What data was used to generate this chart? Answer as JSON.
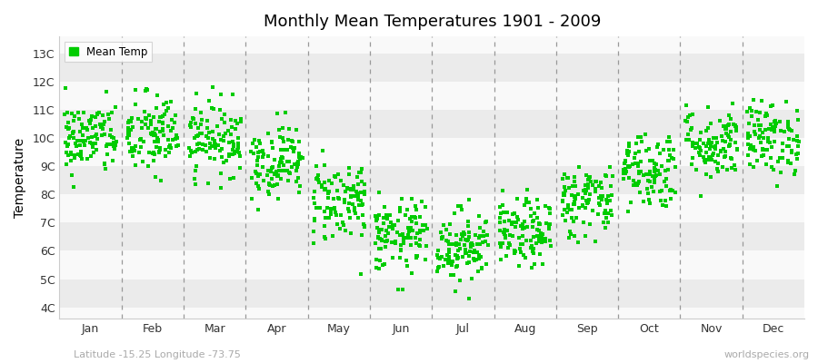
{
  "title": "Monthly Mean Temperatures 1901 - 2009",
  "ylabel": "Temperature",
  "subtitle_left": "Latitude -15.25 Longitude -73.75",
  "subtitle_right": "worldspecies.org",
  "dot_color": "#00cc00",
  "background_color": "#f5f5f5",
  "band_light": "#f9f9f9",
  "band_dark": "#ebebeb",
  "y_ticks": [
    4,
    5,
    6,
    7,
    8,
    9,
    10,
    11,
    12,
    13
  ],
  "y_labels": [
    "4C",
    "5C",
    "6C",
    "7C",
    "8C",
    "9C",
    "10C",
    "11C",
    "12C",
    "13C"
  ],
  "ylim": [
    3.6,
    13.6
  ],
  "months": [
    "Jan",
    "Feb",
    "Mar",
    "Apr",
    "May",
    "Jun",
    "Jul",
    "Aug",
    "Sep",
    "Oct",
    "Nov",
    "Dec"
  ],
  "month_means": [
    10.0,
    10.1,
    10.0,
    9.2,
    7.8,
    6.5,
    6.2,
    6.6,
    7.8,
    8.9,
    9.8,
    10.0
  ],
  "month_stds": [
    0.65,
    0.75,
    0.65,
    0.65,
    0.75,
    0.65,
    0.65,
    0.6,
    0.65,
    0.7,
    0.65,
    0.65
  ],
  "n_years": 109,
  "seed": 42,
  "marker_size": 5
}
